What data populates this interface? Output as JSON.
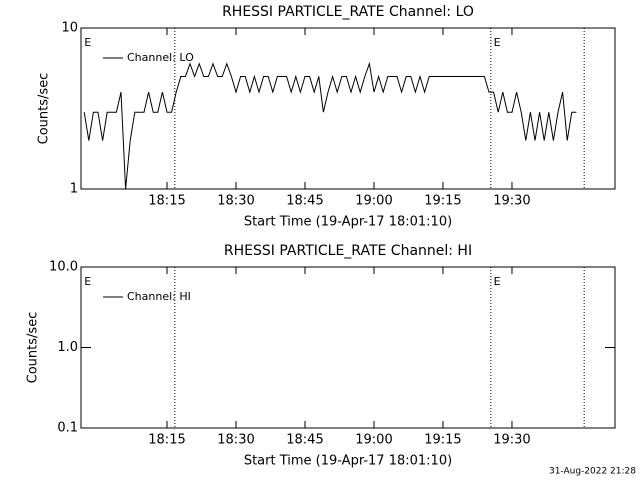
{
  "chart_data": [
    {
      "type": "line",
      "title": "RHESSI PARTICLE_RATE Channel: LO",
      "xlabel": "Start Time (19-Apr-17 18:01:10)",
      "ylabel": "Counts/sec",
      "log_y": true,
      "xlim": [
        -3.7,
        112.4
      ],
      "ylim": [
        1,
        10
      ],
      "yticks": [
        1,
        10
      ],
      "xticks": [
        {
          "value": 15,
          "label": "18:15"
        },
        {
          "value": 30,
          "label": "18:30"
        },
        {
          "value": 45,
          "label": "18:45"
        },
        {
          "value": 60,
          "label": "19:00"
        },
        {
          "value": 75,
          "label": "19:15"
        },
        {
          "value": 90,
          "label": "19:30"
        }
      ],
      "vlines": [
        16.7,
        85.4,
        105.7
      ],
      "markers": [
        {
          "x": -3,
          "label": "E"
        },
        {
          "x": 86,
          "label": "E"
        }
      ],
      "legend": "upper left",
      "x": [
        -3,
        -2,
        -1,
        0,
        1,
        2,
        3,
        4,
        5,
        6,
        7,
        8,
        9,
        10,
        11,
        12,
        13,
        14,
        15,
        16,
        17,
        18,
        19,
        20,
        21,
        22,
        23,
        24,
        25,
        26,
        27,
        28,
        29,
        30,
        31,
        32,
        33,
        34,
        35,
        36,
        37,
        38,
        39,
        40,
        41,
        42,
        43,
        44,
        45,
        46,
        47,
        48,
        49,
        50,
        51,
        52,
        53,
        54,
        55,
        56,
        57,
        58,
        59,
        60,
        61,
        62,
        63,
        64,
        65,
        66,
        67,
        68,
        69,
        70,
        71,
        72,
        73,
        74,
        75,
        76,
        77,
        78,
        79,
        80,
        81,
        82,
        83,
        84,
        85,
        86,
        87,
        88,
        89,
        90,
        91,
        92,
        93,
        94,
        95,
        96,
        97,
        98,
        99,
        100,
        101,
        102,
        103,
        104
      ],
      "series": [
        {
          "name": "Channel: LO",
          "color": "#000000",
          "values": [
            3,
            2,
            3,
            3,
            2,
            3,
            3,
            3,
            4,
            1,
            2,
            3,
            3,
            3,
            4,
            3,
            3,
            4,
            3,
            3,
            4,
            5,
            5,
            6,
            5,
            6,
            5,
            5,
            6,
            5,
            5,
            6,
            5,
            4,
            5,
            5,
            4,
            5,
            4,
            5,
            5,
            4,
            5,
            5,
            5,
            4,
            5,
            4,
            5,
            5,
            4,
            5,
            3,
            4,
            5,
            4,
            5,
            5,
            4,
            5,
            4,
            5,
            6,
            4,
            5,
            4,
            5,
            5,
            5,
            4,
            5,
            5,
            4,
            5,
            4,
            5,
            5,
            5,
            5,
            5,
            5,
            5,
            5,
            5,
            5,
            5,
            5,
            5,
            4,
            4,
            3,
            4,
            3,
            3,
            4,
            3,
            2,
            3,
            2,
            3,
            2,
            3,
            2,
            3,
            4,
            2,
            3,
            3
          ]
        }
      ]
    },
    {
      "type": "line",
      "title": "RHESSI PARTICLE_RATE Channel: HI",
      "xlabel": "Start Time (19-Apr-17 18:01:10)",
      "ylabel": "Counts/sec",
      "log_y": true,
      "xlim": [
        -3.7,
        112.4
      ],
      "ylim": [
        0.1,
        10
      ],
      "yticks": [
        0.1,
        {
          "value": 1,
          "label": "1.0"
        },
        {
          "value": 10,
          "label": "10.0"
        }
      ],
      "xticks": [
        {
          "value": 15,
          "label": "18:15"
        },
        {
          "value": 30,
          "label": "18:30"
        },
        {
          "value": 45,
          "label": "18:45"
        },
        {
          "value": 60,
          "label": "19:00"
        },
        {
          "value": 75,
          "label": "19:15"
        },
        {
          "value": 90,
          "label": "19:30"
        }
      ],
      "vlines": [
        16.7,
        85.4,
        105.7
      ],
      "markers": [
        {
          "x": -3,
          "label": "E"
        },
        {
          "x": 86,
          "label": "E"
        }
      ],
      "legend": "upper left",
      "x": [],
      "series": [
        {
          "name": "Channel: HI",
          "color": "#000000",
          "values": []
        }
      ]
    }
  ],
  "footer": "31-Aug-2022 21:28"
}
